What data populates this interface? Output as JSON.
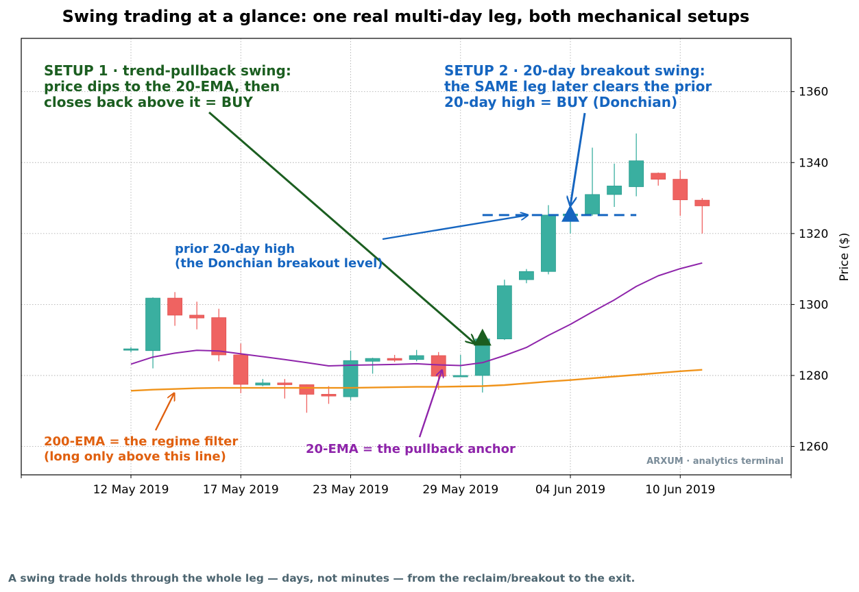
{
  "chart_data": {
    "type": "candlestick",
    "title": "Swing trading at a glance: one real multi-day leg, both mechanical setups",
    "ylabel": "Price ($)",
    "xlabel": "",
    "ylim": [
      1252,
      1375
    ],
    "yticks": [
      1260,
      1280,
      1300,
      1320,
      1340,
      1360
    ],
    "x_tick_labels": [
      "12 May 2019",
      "17 May 2019",
      "23 May 2019",
      "29 May 2019",
      "04 Jun 2019",
      "10 Jun 2019"
    ],
    "grid": true,
    "candles": [
      {
        "open": 1287.2,
        "high": 1288.0,
        "low": 1286.5,
        "close": 1287.5
      },
      {
        "open": 1287.0,
        "high": 1302.0,
        "low": 1282.0,
        "close": 1301.8
      },
      {
        "open": 1301.8,
        "high": 1303.5,
        "low": 1294.0,
        "close": 1297.0
      },
      {
        "open": 1297.0,
        "high": 1300.8,
        "low": 1293.0,
        "close": 1296.2
      },
      {
        "open": 1296.3,
        "high": 1298.8,
        "low": 1284.0,
        "close": 1285.8
      },
      {
        "open": 1285.8,
        "high": 1289.0,
        "low": 1275.0,
        "close": 1277.5
      },
      {
        "open": 1277.3,
        "high": 1279.0,
        "low": 1277.0,
        "close": 1277.9
      },
      {
        "open": 1277.9,
        "high": 1279.0,
        "low": 1273.5,
        "close": 1277.4
      },
      {
        "open": 1277.4,
        "high": 1277.5,
        "low": 1269.5,
        "close": 1274.7
      },
      {
        "open": 1274.7,
        "high": 1277.0,
        "low": 1272.0,
        "close": 1274.2
      },
      {
        "open": 1274.0,
        "high": 1287.0,
        "low": 1273.0,
        "close": 1284.2
      },
      {
        "open": 1284.0,
        "high": 1285.0,
        "low": 1280.5,
        "close": 1284.8
      },
      {
        "open": 1284.8,
        "high": 1285.8,
        "low": 1283.8,
        "close": 1284.3
      },
      {
        "open": 1284.5,
        "high": 1287.2,
        "low": 1284.0,
        "close": 1285.6
      },
      {
        "open": 1285.6,
        "high": 1286.6,
        "low": 1276.0,
        "close": 1279.8
      },
      {
        "open": 1279.6,
        "high": 1285.8,
        "low": 1279.5,
        "close": 1280.0
      },
      {
        "open": 1280.0,
        "high": 1291.0,
        "low": 1275.2,
        "close": 1290.3
      },
      {
        "open": 1290.3,
        "high": 1307.0,
        "low": 1290.0,
        "close": 1305.3
      },
      {
        "open": 1307.0,
        "high": 1310.0,
        "low": 1306.0,
        "close": 1309.3
      },
      {
        "open": 1309.3,
        "high": 1328.0,
        "low": 1308.5,
        "close": 1325.2
      },
      {
        "open": 1325.0,
        "high": 1326.5,
        "low": 1320.0,
        "close": 1325.5
      },
      {
        "open": 1325.5,
        "high": 1344.2,
        "low": 1325.0,
        "close": 1331.0
      },
      {
        "open": 1331.0,
        "high": 1339.7,
        "low": 1327.5,
        "close": 1333.4
      },
      {
        "open": 1333.2,
        "high": 1348.2,
        "low": 1330.5,
        "close": 1340.5
      },
      {
        "open": 1337.0,
        "high": 1337.2,
        "low": 1333.5,
        "close": 1335.3
      },
      {
        "open": 1335.3,
        "high": 1337.8,
        "low": 1325.0,
        "close": 1329.5
      },
      {
        "open": 1329.4,
        "high": 1330.0,
        "low": 1320.0,
        "close": 1327.8
      }
    ],
    "series": [
      {
        "name": "20-EMA",
        "color": "#8e24aa",
        "values": [
          1283.2,
          1285.2,
          1286.3,
          1287.1,
          1286.9,
          1286.1,
          1285.3,
          1284.5,
          1283.6,
          1282.7,
          1282.9,
          1283.0,
          1283.1,
          1283.3,
          1283.0,
          1282.8,
          1283.6,
          1285.6,
          1287.9,
          1291.3,
          1294.4,
          1297.9,
          1301.3,
          1305.1,
          1308.1,
          1310.1,
          1311.7
        ]
      },
      {
        "name": "200-EMA",
        "color": "#f0931a",
        "values": [
          1275.7,
          1276.0,
          1276.2,
          1276.4,
          1276.5,
          1276.5,
          1276.5,
          1276.5,
          1276.5,
          1276.5,
          1276.5,
          1276.6,
          1276.7,
          1276.8,
          1276.8,
          1276.9,
          1277.0,
          1277.3,
          1277.8,
          1278.3,
          1278.7,
          1279.2,
          1279.7,
          1280.2,
          1280.7,
          1281.2,
          1281.6
        ]
      }
    ],
    "donchian_level": 1325.2,
    "donchian_span": [
      16,
      23
    ],
    "setup1_marker": {
      "index": 16,
      "price": 1290.3
    },
    "setup2_marker": {
      "index": 20,
      "price": 1325.2
    },
    "colors": {
      "up": "#3aafa0",
      "down": "#ef6361",
      "setup1": "#1b5e20",
      "setup2": "#1565c0",
      "ema20": "#8e24aa",
      "ema200": "#f0931a"
    }
  },
  "annotations": {
    "setup1": [
      "SETUP 1 · trend-pullback swing:",
      "price dips to the 20-EMA, then",
      "closes back above it = BUY"
    ],
    "setup2": [
      "SETUP 2 · 20-day breakout swing:",
      "the SAME leg later clears the prior",
      "20-day high = BUY (Donchian)"
    ],
    "donchian": [
      "prior 20-day high",
      "(the Donchian breakout level)"
    ],
    "ema200": [
      "200-EMA = the regime filter",
      "(long only above this line)"
    ],
    "ema20": [
      "20-EMA = the pullback anchor"
    ]
  },
  "watermark": "ARXUM · analytics terminal",
  "caption": "A swing trade holds through the whole leg — days, not minutes — from the reclaim/breakout to the exit."
}
